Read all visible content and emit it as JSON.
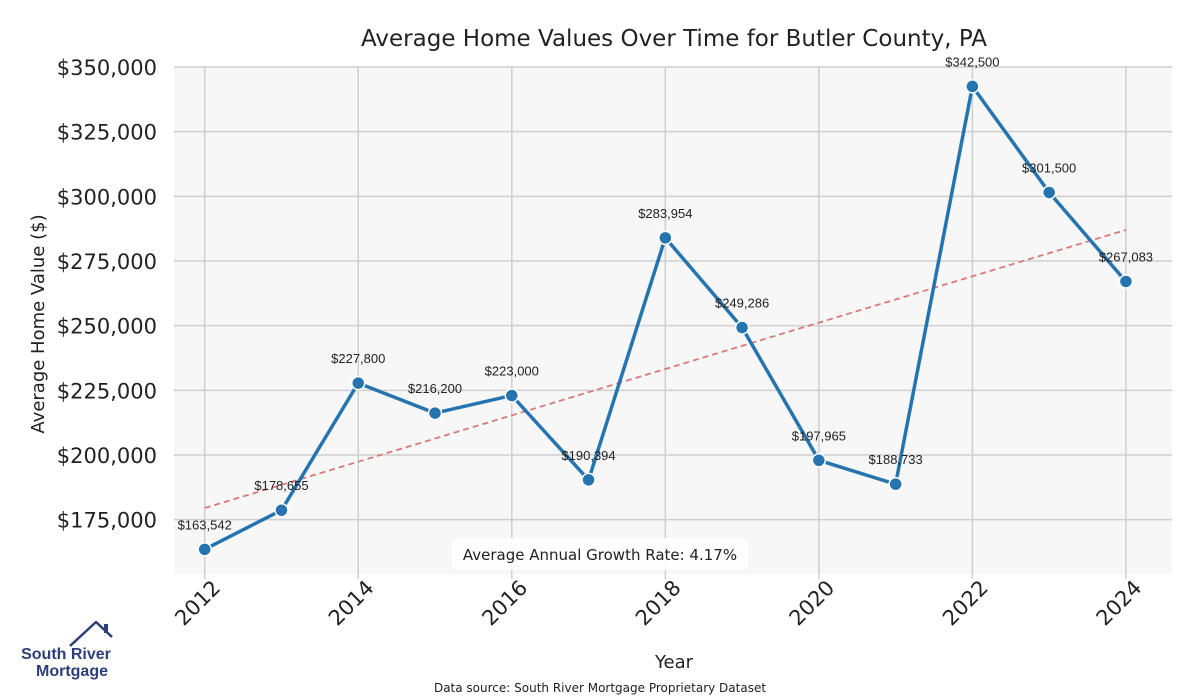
{
  "chart_data": {
    "type": "line",
    "title": "Average Home Values Over Time for Butler County, PA",
    "xlabel": "Year",
    "ylabel": "Average Home Value ($)",
    "x": [
      2012,
      2013,
      2014,
      2015,
      2016,
      2017,
      2018,
      2019,
      2020,
      2021,
      2022,
      2023,
      2024
    ],
    "values": [
      163542,
      178655,
      227800,
      216200,
      223000,
      190394,
      283954,
      249286,
      197965,
      188733,
      342500,
      301500,
      267083
    ],
    "data_labels": [
      "$163,542",
      "$178,655",
      "$227,800",
      "$216,200",
      "$223,000",
      "$190,394",
      "$283,954",
      "$249,286",
      "$197,965",
      "$188,733",
      "$342,500",
      "$301,500",
      "$267,083"
    ],
    "x_ticks": [
      "2012",
      "2014",
      "2016",
      "2018",
      "2020",
      "2022",
      "2024"
    ],
    "y_ticks": [
      175000,
      200000,
      225000,
      250000,
      275000,
      300000,
      325000,
      350000
    ],
    "y_tick_labels": [
      "$175,000",
      "$200,000",
      "$225,000",
      "$250,000",
      "$275,000",
      "$300,000",
      "$325,000",
      "$350,000"
    ],
    "ylim": [
      154000,
      350000
    ],
    "xlim": [
      2011.6,
      2024.6
    ],
    "trendline": {
      "x": [
        2012,
        2024
      ],
      "y": [
        179500,
        287000
      ]
    },
    "grid": true,
    "annotation": "Average Annual Growth Rate: 4.17%",
    "source": "Data source: South River Mortgage Proprietary Dataset",
    "series_color": "#2574b0",
    "trend_color": "#d97a7a"
  },
  "logo": {
    "line1": "South River",
    "line2": "Mortgage"
  }
}
